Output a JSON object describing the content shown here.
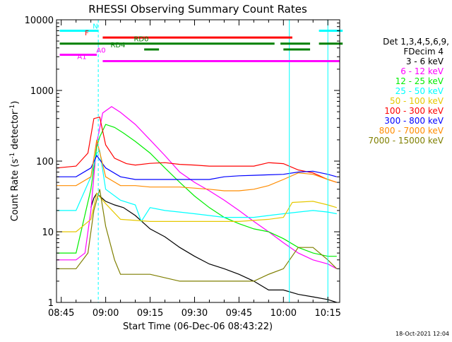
{
  "chart_data": {
    "type": "line",
    "title": "RHESSI Observing Summary Count Rates",
    "xlabel": "Start Time (06-Dec-06 08:43:22)",
    "ylabel_main": "Count Rate (s",
    "ylabel_sup1": "-1",
    "ylabel_mid": " detector",
    "ylabel_sup2": "-1",
    "ylabel_end": ")",
    "x_ticks": [
      "08:45",
      "09:00",
      "09:15",
      "09:30",
      "09:45",
      "10:00",
      "10:15"
    ],
    "x_range_minutes": [
      -1.6,
      94
    ],
    "y_scale": "log",
    "y_range": [
      1,
      10000
    ],
    "y_ticks": [
      "1",
      "10",
      "100",
      "1000",
      "10000"
    ],
    "timestamp": "18-Oct-2021 12:04",
    "legend": {
      "header1": "Det 1,3,4,5,6,9,",
      "header2": "FDecim 4",
      "entries": [
        {
          "label": "3 - 6 keV",
          "color": "#000000"
        },
        {
          "label": "6 - 12 keV",
          "color": "#ff00ff"
        },
        {
          "label": "12 - 25 keV",
          "color": "#00ee00"
        },
        {
          "label": "25 - 50 keV",
          "color": "#00ffff"
        },
        {
          "label": "50 - 100 keV",
          "color": "#e6c800"
        },
        {
          "label": "100 - 300 keV",
          "color": "#ff0000"
        },
        {
          "label": "300 - 800 keV",
          "color": "#0000ff"
        },
        {
          "label": "800 - 7000 keV",
          "color": "#ff8c00"
        },
        {
          "label": "7000 - 15000 keV",
          "color": "#7f7f00"
        }
      ]
    },
    "flags": [
      {
        "label": "N",
        "color": "#00ffff",
        "y": 7000,
        "segments": [
          [
            -0.5,
            12.5
          ],
          [
            87,
            95
          ]
        ]
      },
      {
        "label": "F",
        "color": "#ff0000",
        "y": 5600,
        "segments": [
          [
            14,
            78
          ]
        ]
      },
      {
        "label": "RD0",
        "color": "#008000",
        "y": 4600,
        "segments": [
          [
            -0.5,
            72
          ],
          [
            74,
            84
          ],
          [
            87,
            95
          ]
        ]
      },
      {
        "label": "RD4",
        "color": "#008000",
        "y": 3800,
        "segments": [
          [
            28,
            33
          ],
          [
            75,
            84
          ]
        ]
      },
      {
        "label": "A0",
        "color": "#ff00ff",
        "y": 3200,
        "segments": [
          [
            -0.5,
            12
          ]
        ]
      },
      {
        "label": "A1",
        "color": "#ff00ff",
        "y": 2600,
        "segments": [
          [
            14,
            94
          ]
        ]
      }
    ],
    "vlines_solid_minutes": [
      -1.6,
      77,
      90
    ],
    "vlines_dashed_minutes": [
      12.5,
      94
    ],
    "series": [
      {
        "name": "3 - 6 keV",
        "color": "#000000",
        "x": [
          10,
          11,
          12,
          13,
          15,
          18,
          21,
          25,
          30,
          35,
          40,
          45,
          50,
          55,
          60,
          65,
          70,
          75,
          80,
          85,
          90,
          93
        ],
        "y": [
          22,
          30,
          35,
          32,
          27,
          24,
          22,
          17,
          11,
          8.5,
          6,
          4.5,
          3.5,
          3,
          2.5,
          2,
          1.5,
          1.5,
          1.3,
          1.2,
          1.1,
          1
        ]
      },
      {
        "name": "6 - 12 keV",
        "color": "#ff00ff",
        "x": [
          -1.5,
          5,
          8,
          10,
          12,
          14,
          17,
          20,
          25,
          30,
          35,
          40,
          45,
          50,
          55,
          60,
          65,
          70,
          75,
          80,
          85,
          90,
          93
        ],
        "y": [
          4,
          4,
          5,
          20,
          180,
          480,
          590,
          490,
          330,
          200,
          120,
          70,
          50,
          38,
          28,
          20,
          14,
          10,
          7,
          5,
          4,
          3.5,
          3
        ]
      },
      {
        "name": "12 - 25 keV",
        "color": "#00ee00",
        "x": [
          -1.5,
          5,
          10,
          12,
          13,
          15,
          18,
          21,
          25,
          30,
          35,
          40,
          45,
          50,
          55,
          60,
          65,
          70,
          75,
          80,
          85,
          90,
          93
        ],
        "y": [
          5,
          5,
          40,
          160,
          220,
          330,
          300,
          250,
          190,
          130,
          80,
          50,
          32,
          22,
          16,
          13,
          11,
          10,
          8,
          6,
          5,
          4.5,
          4.5
        ]
      },
      {
        "name": "25 - 50 keV",
        "color": "#00ffff",
        "x": [
          -1.5,
          5,
          10,
          12,
          13,
          15,
          20,
          25,
          27,
          30,
          35,
          40,
          45,
          50,
          55,
          60,
          65,
          70,
          75,
          80,
          85,
          90,
          93
        ],
        "y": [
          20,
          20,
          60,
          130,
          140,
          40,
          28,
          24,
          14,
          22,
          20,
          19,
          18,
          17,
          16,
          16,
          16,
          17,
          18,
          19,
          20,
          19,
          18
        ]
      },
      {
        "name": "50 - 100 keV",
        "color": "#e6c800",
        "x": [
          -1.5,
          5,
          10,
          12,
          15,
          20,
          30,
          40,
          50,
          60,
          70,
          75,
          78,
          85,
          90,
          93
        ],
        "y": [
          10,
          10,
          15,
          35,
          25,
          15,
          14,
          14,
          14,
          14,
          15,
          16,
          26,
          27,
          24,
          22
        ]
      },
      {
        "name": "100 - 300 keV",
        "color": "#ff0000",
        "x": [
          -1.5,
          5,
          9,
          11,
          13,
          15,
          18,
          22,
          25,
          30,
          35,
          40,
          45,
          50,
          55,
          60,
          65,
          70,
          75,
          80,
          85,
          90,
          93
        ],
        "y": [
          80,
          85,
          130,
          400,
          420,
          170,
          110,
          92,
          88,
          93,
          95,
          90,
          88,
          85,
          85,
          85,
          85,
          95,
          92,
          75,
          68,
          55,
          50
        ]
      },
      {
        "name": "300 - 800 keV",
        "color": "#0000ff",
        "x": [
          -1.5,
          5,
          10,
          12,
          15,
          20,
          25,
          30,
          40,
          50,
          55,
          60,
          65,
          70,
          75,
          80,
          85,
          90,
          93
        ],
        "y": [
          60,
          60,
          80,
          120,
          80,
          60,
          55,
          55,
          55,
          55,
          60,
          62,
          63,
          64,
          65,
          70,
          72,
          65,
          60
        ]
      },
      {
        "name": "800 - 7000 keV",
        "color": "#ff8c00",
        "x": [
          -1.5,
          5,
          10,
          12,
          15,
          20,
          25,
          30,
          40,
          50,
          55,
          60,
          65,
          70,
          75,
          80,
          85,
          90,
          93
        ],
        "y": [
          45,
          45,
          60,
          200,
          60,
          45,
          45,
          43,
          43,
          40,
          38,
          38,
          40,
          45,
          55,
          68,
          65,
          55,
          50
        ]
      },
      {
        "name": "7000 - 15000 keV",
        "color": "#7f7f00",
        "x": [
          -1.5,
          5,
          9,
          11,
          13,
          15,
          18,
          20,
          30,
          40,
          50,
          60,
          65,
          70,
          75,
          80,
          85,
          90,
          93
        ],
        "y": [
          3,
          3,
          5,
          20,
          40,
          12,
          4,
          2.5,
          2.5,
          2,
          2,
          2,
          2,
          2.5,
          3,
          6,
          6,
          4,
          3
        ]
      }
    ]
  }
}
